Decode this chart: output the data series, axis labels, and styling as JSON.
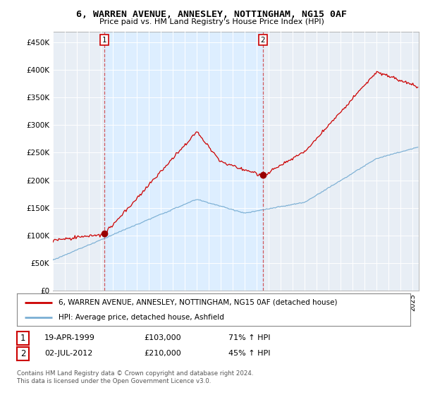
{
  "title": "6, WARREN AVENUE, ANNESLEY, NOTTINGHAM, NG15 0AF",
  "subtitle": "Price paid vs. HM Land Registry's House Price Index (HPI)",
  "ylabel_ticks": [
    "£0",
    "£50K",
    "£100K",
    "£150K",
    "£200K",
    "£250K",
    "£300K",
    "£350K",
    "£400K",
    "£450K"
  ],
  "ytick_values": [
    0,
    50000,
    100000,
    150000,
    200000,
    250000,
    300000,
    350000,
    400000,
    450000
  ],
  "ylim": [
    0,
    470000
  ],
  "xlim_start": 1995.0,
  "xlim_end": 2025.5,
  "sale1_date": 1999.29,
  "sale1_price": 103000,
  "sale2_date": 2012.5,
  "sale2_price": 210000,
  "legend_line1": "6, WARREN AVENUE, ANNESLEY, NOTTINGHAM, NG15 0AF (detached house)",
  "legend_line2": "HPI: Average price, detached house, Ashfield",
  "table_row1": [
    "1",
    "19-APR-1999",
    "£103,000",
    "71% ↑ HPI"
  ],
  "table_row2": [
    "2",
    "02-JUL-2012",
    "£210,000",
    "45% ↑ HPI"
  ],
  "footer": "Contains HM Land Registry data © Crown copyright and database right 2024.\nThis data is licensed under the Open Government Licence v3.0.",
  "price_color": "#cc0000",
  "hpi_color": "#7bafd4",
  "shade_color": "#ddeeff",
  "bg_color": "#f0f4f8",
  "chart_bg": "#e8eef5",
  "grid_color": "#cccccc",
  "title_fontsize": 10,
  "subtitle_fontsize": 8.5
}
